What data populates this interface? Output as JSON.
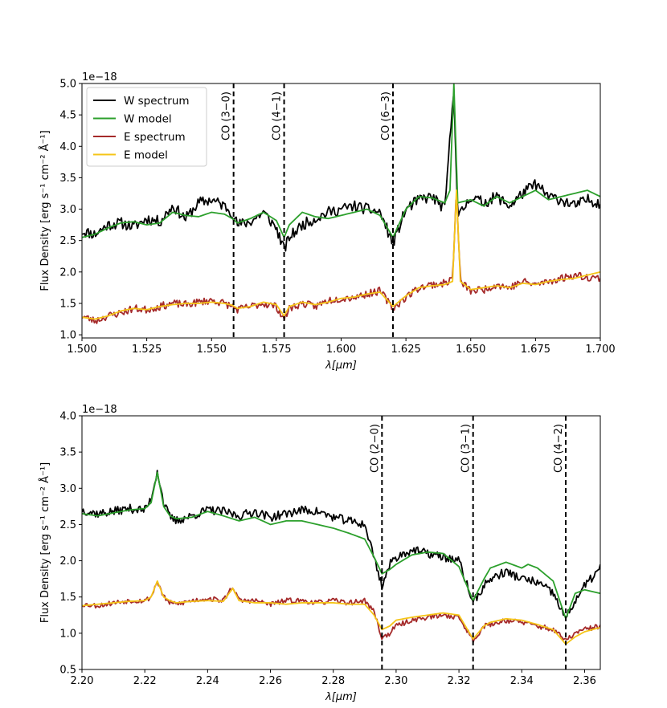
{
  "chart_data": [
    {
      "type": "line",
      "title": "",
      "xlabel": "λ[μm]",
      "ylabel": "Flux Density [erg s⁻¹ cm⁻² Å⁻¹]",
      "offset_text": "1e−18",
      "xlim": [
        1.5,
        1.7
      ],
      "ylim": [
        0.95,
        5.0
      ],
      "xticks": [
        1.5,
        1.525,
        1.55,
        1.575,
        1.6,
        1.625,
        1.65,
        1.675,
        1.7
      ],
      "xtick_labels": [
        "1.500",
        "1.525",
        "1.550",
        "1.575",
        "1.600",
        "1.625",
        "1.650",
        "1.675",
        "1.700"
      ],
      "yticks": [
        1.0,
        1.5,
        2.0,
        2.5,
        3.0,
        3.5,
        4.0,
        4.5,
        5.0
      ],
      "ytick_labels": [
        "1.0",
        "1.5",
        "2.0",
        "2.5",
        "3.0",
        "3.5",
        "4.0",
        "4.5",
        "5.0"
      ],
      "legend": {
        "position": "top-left",
        "entries": [
          "W spectrum",
          "W model",
          "E spectrum",
          "E model"
        ]
      },
      "markers": [
        {
          "x": 1.5585,
          "label": "CO (3−0)"
        },
        {
          "x": 1.578,
          "label": "CO (4−1)"
        },
        {
          "x": 1.62,
          "label": "CO (6−3)"
        }
      ],
      "series": [
        {
          "name": "W spectrum",
          "color": "#000000",
          "noise": 0.09,
          "seed": 11,
          "x": [
            1.5,
            1.505,
            1.51,
            1.515,
            1.52,
            1.525,
            1.53,
            1.535,
            1.54,
            1.545,
            1.55,
            1.555,
            1.558,
            1.56,
            1.565,
            1.57,
            1.575,
            1.578,
            1.58,
            1.585,
            1.59,
            1.595,
            1.6,
            1.605,
            1.61,
            1.615,
            1.62,
            1.625,
            1.63,
            1.635,
            1.64,
            1.6435,
            1.645,
            1.65,
            1.655,
            1.66,
            1.665,
            1.67,
            1.675,
            1.68,
            1.685,
            1.69,
            1.695,
            1.7
          ],
          "y": [
            2.65,
            2.6,
            2.75,
            2.78,
            2.72,
            2.85,
            2.8,
            3.05,
            2.85,
            3.1,
            3.15,
            3.05,
            2.95,
            2.75,
            2.8,
            2.95,
            2.7,
            2.35,
            2.55,
            2.75,
            2.85,
            2.95,
            3.0,
            3.05,
            3.0,
            2.95,
            2.45,
            3.0,
            3.15,
            3.2,
            3.0,
            4.95,
            2.85,
            3.2,
            3.1,
            3.2,
            3.05,
            3.25,
            3.4,
            3.2,
            3.15,
            3.05,
            3.15,
            3.1
          ]
        },
        {
          "name": "W model",
          "color": "#2ca02c",
          "noise": 0,
          "seed": 0,
          "x": [
            1.5,
            1.505,
            1.51,
            1.515,
            1.52,
            1.525,
            1.53,
            1.535,
            1.54,
            1.545,
            1.55,
            1.555,
            1.558,
            1.56,
            1.565,
            1.57,
            1.575,
            1.578,
            1.58,
            1.585,
            1.59,
            1.595,
            1.6,
            1.605,
            1.61,
            1.615,
            1.62,
            1.625,
            1.63,
            1.635,
            1.64,
            1.642,
            1.6435,
            1.645,
            1.65,
            1.655,
            1.66,
            1.665,
            1.67,
            1.675,
            1.68,
            1.685,
            1.69,
            1.695,
            1.7
          ],
          "y": [
            2.55,
            2.6,
            2.7,
            2.78,
            2.8,
            2.75,
            2.78,
            2.95,
            2.9,
            2.88,
            2.95,
            2.92,
            2.85,
            2.78,
            2.85,
            2.95,
            2.82,
            2.55,
            2.75,
            2.95,
            2.88,
            2.85,
            2.9,
            2.95,
            3.0,
            2.9,
            2.55,
            3.0,
            3.2,
            3.18,
            3.1,
            3.3,
            5.0,
            3.1,
            3.15,
            3.05,
            3.2,
            3.1,
            3.2,
            3.3,
            3.15,
            3.2,
            3.25,
            3.3,
            3.2
          ]
        },
        {
          "name": "E spectrum",
          "color": "#a52a2a",
          "noise": 0.06,
          "seed": 23,
          "x": [
            1.5,
            1.505,
            1.51,
            1.515,
            1.52,
            1.525,
            1.53,
            1.535,
            1.54,
            1.545,
            1.55,
            1.555,
            1.558,
            1.56,
            1.565,
            1.57,
            1.575,
            1.578,
            1.58,
            1.585,
            1.59,
            1.595,
            1.6,
            1.605,
            1.61,
            1.615,
            1.62,
            1.625,
            1.63,
            1.635,
            1.64,
            1.643,
            1.6445,
            1.646,
            1.65,
            1.655,
            1.66,
            1.665,
            1.67,
            1.675,
            1.68,
            1.685,
            1.69,
            1.695,
            1.7
          ],
          "y": [
            1.3,
            1.22,
            1.3,
            1.35,
            1.42,
            1.4,
            1.45,
            1.5,
            1.48,
            1.52,
            1.55,
            1.5,
            1.45,
            1.4,
            1.45,
            1.5,
            1.45,
            1.25,
            1.42,
            1.5,
            1.45,
            1.55,
            1.58,
            1.6,
            1.65,
            1.7,
            1.42,
            1.6,
            1.75,
            1.8,
            1.82,
            1.9,
            3.3,
            1.85,
            1.7,
            1.72,
            1.8,
            1.75,
            1.85,
            1.8,
            1.85,
            1.9,
            1.95,
            1.92,
            1.9
          ]
        },
        {
          "name": "E model",
          "color": "#f5c518",
          "noise": 0,
          "seed": 0,
          "x": [
            1.5,
            1.505,
            1.51,
            1.515,
            1.52,
            1.525,
            1.53,
            1.535,
            1.54,
            1.545,
            1.55,
            1.555,
            1.558,
            1.56,
            1.565,
            1.57,
            1.575,
            1.578,
            1.58,
            1.585,
            1.59,
            1.595,
            1.6,
            1.605,
            1.61,
            1.615,
            1.62,
            1.625,
            1.63,
            1.635,
            1.64,
            1.643,
            1.6445,
            1.646,
            1.65,
            1.655,
            1.66,
            1.665,
            1.67,
            1.675,
            1.68,
            1.685,
            1.69,
            1.695,
            1.7
          ],
          "y": [
            1.28,
            1.25,
            1.3,
            1.38,
            1.42,
            1.4,
            1.45,
            1.48,
            1.5,
            1.5,
            1.52,
            1.5,
            1.47,
            1.42,
            1.45,
            1.52,
            1.48,
            1.3,
            1.45,
            1.52,
            1.48,
            1.52,
            1.58,
            1.6,
            1.65,
            1.68,
            1.45,
            1.62,
            1.75,
            1.78,
            1.8,
            1.85,
            3.3,
            1.85,
            1.72,
            1.75,
            1.78,
            1.75,
            1.82,
            1.8,
            1.85,
            1.88,
            1.9,
            1.95,
            2.0
          ]
        }
      ]
    },
    {
      "type": "line",
      "title": "",
      "xlabel": "λ[μm]",
      "ylabel": "Flux Density [erg s⁻¹ cm⁻² Å⁻¹]",
      "offset_text": "1e−18",
      "xlim": [
        2.2,
        2.365
      ],
      "ylim": [
        0.5,
        4.0
      ],
      "xticks": [
        2.2,
        2.22,
        2.24,
        2.26,
        2.28,
        2.3,
        2.32,
        2.34,
        2.36
      ],
      "xtick_labels": [
        "2.20",
        "2.22",
        "2.24",
        "2.26",
        "2.28",
        "2.30",
        "2.32",
        "2.34",
        "2.36"
      ],
      "yticks": [
        0.5,
        1.0,
        1.5,
        2.0,
        2.5,
        3.0,
        3.5,
        4.0
      ],
      "ytick_labels": [
        "0.5",
        "1.0",
        "1.5",
        "2.0",
        "2.5",
        "3.0",
        "3.5",
        "4.0"
      ],
      "markers": [
        {
          "x": 2.2955,
          "label": "CO (2−0)"
        },
        {
          "x": 2.3245,
          "label": "CO (3−1)"
        },
        {
          "x": 2.354,
          "label": "CO (4−2)"
        }
      ],
      "series": [
        {
          "name": "W spectrum",
          "color": "#000000",
          "noise": 0.06,
          "seed": 37,
          "x": [
            2.2,
            2.205,
            2.21,
            2.215,
            2.22,
            2.222,
            2.224,
            2.226,
            2.228,
            2.23,
            2.235,
            2.24,
            2.245,
            2.25,
            2.255,
            2.26,
            2.265,
            2.27,
            2.275,
            2.28,
            2.285,
            2.29,
            2.293,
            2.2955,
            2.298,
            2.3,
            2.305,
            2.31,
            2.315,
            2.32,
            2.3245,
            2.328,
            2.33,
            2.335,
            2.34,
            2.345,
            2.35,
            2.354,
            2.357,
            2.36,
            2.365
          ],
          "y": [
            2.7,
            2.65,
            2.68,
            2.72,
            2.7,
            2.85,
            3.25,
            2.8,
            2.6,
            2.55,
            2.62,
            2.7,
            2.68,
            2.62,
            2.68,
            2.6,
            2.65,
            2.7,
            2.68,
            2.6,
            2.55,
            2.5,
            2.05,
            1.65,
            1.95,
            2.05,
            2.15,
            2.1,
            2.05,
            2.0,
            1.42,
            1.65,
            1.75,
            1.85,
            1.75,
            1.7,
            1.55,
            1.2,
            1.45,
            1.65,
            1.9
          ]
        },
        {
          "name": "W model",
          "color": "#2ca02c",
          "noise": 0,
          "seed": 0,
          "x": [
            2.2,
            2.205,
            2.21,
            2.215,
            2.22,
            2.222,
            2.224,
            2.226,
            2.228,
            2.23,
            2.235,
            2.24,
            2.245,
            2.25,
            2.255,
            2.26,
            2.265,
            2.27,
            2.275,
            2.28,
            2.285,
            2.29,
            2.293,
            2.2955,
            2.298,
            2.3,
            2.305,
            2.31,
            2.315,
            2.32,
            2.3245,
            2.328,
            2.33,
            2.335,
            2.34,
            2.342,
            2.345,
            2.35,
            2.354,
            2.357,
            2.36,
            2.365
          ],
          "y": [
            2.65,
            2.62,
            2.66,
            2.7,
            2.72,
            2.8,
            3.22,
            2.75,
            2.62,
            2.58,
            2.6,
            2.68,
            2.62,
            2.55,
            2.6,
            2.5,
            2.55,
            2.55,
            2.5,
            2.45,
            2.38,
            2.3,
            2.05,
            1.82,
            1.88,
            1.95,
            2.08,
            2.12,
            2.1,
            1.92,
            1.45,
            1.75,
            1.9,
            1.98,
            1.9,
            1.95,
            1.9,
            1.72,
            1.2,
            1.55,
            1.6,
            1.55
          ]
        },
        {
          "name": "E spectrum",
          "color": "#a52a2a",
          "noise": 0.035,
          "seed": 53,
          "x": [
            2.2,
            2.205,
            2.21,
            2.215,
            2.22,
            2.222,
            2.224,
            2.226,
            2.228,
            2.23,
            2.235,
            2.24,
            2.245,
            2.248,
            2.25,
            2.255,
            2.26,
            2.265,
            2.27,
            2.275,
            2.28,
            2.285,
            2.29,
            2.293,
            2.2955,
            2.298,
            2.3,
            2.305,
            2.31,
            2.315,
            2.32,
            2.3245,
            2.328,
            2.33,
            2.335,
            2.34,
            2.345,
            2.35,
            2.354,
            2.357,
            2.36,
            2.365
          ],
          "y": [
            1.4,
            1.38,
            1.42,
            1.45,
            1.45,
            1.5,
            1.72,
            1.5,
            1.42,
            1.4,
            1.45,
            1.48,
            1.45,
            1.65,
            1.45,
            1.45,
            1.4,
            1.45,
            1.45,
            1.42,
            1.45,
            1.42,
            1.45,
            1.3,
            0.93,
            1.0,
            1.1,
            1.18,
            1.22,
            1.25,
            1.22,
            0.9,
            1.1,
            1.12,
            1.18,
            1.15,
            1.1,
            1.05,
            0.9,
            1.0,
            1.05,
            1.1
          ]
        },
        {
          "name": "E model",
          "color": "#f5c518",
          "noise": 0,
          "seed": 0,
          "x": [
            2.2,
            2.205,
            2.21,
            2.215,
            2.22,
            2.222,
            2.224,
            2.226,
            2.228,
            2.23,
            2.235,
            2.24,
            2.245,
            2.248,
            2.25,
            2.255,
            2.26,
            2.265,
            2.27,
            2.275,
            2.28,
            2.285,
            2.29,
            2.293,
            2.2955,
            2.298,
            2.3,
            2.305,
            2.31,
            2.315,
            2.32,
            2.3245,
            2.328,
            2.33,
            2.335,
            2.34,
            2.345,
            2.35,
            2.354,
            2.357,
            2.36,
            2.365
          ],
          "y": [
            1.38,
            1.4,
            1.42,
            1.44,
            1.45,
            1.5,
            1.72,
            1.5,
            1.45,
            1.42,
            1.44,
            1.45,
            1.44,
            1.62,
            1.45,
            1.42,
            1.42,
            1.4,
            1.42,
            1.42,
            1.42,
            1.4,
            1.4,
            1.25,
            1.05,
            1.1,
            1.18,
            1.22,
            1.25,
            1.28,
            1.25,
            0.92,
            1.1,
            1.15,
            1.2,
            1.18,
            1.12,
            1.05,
            0.85,
            0.95,
            1.02,
            1.08
          ]
        }
      ]
    }
  ]
}
